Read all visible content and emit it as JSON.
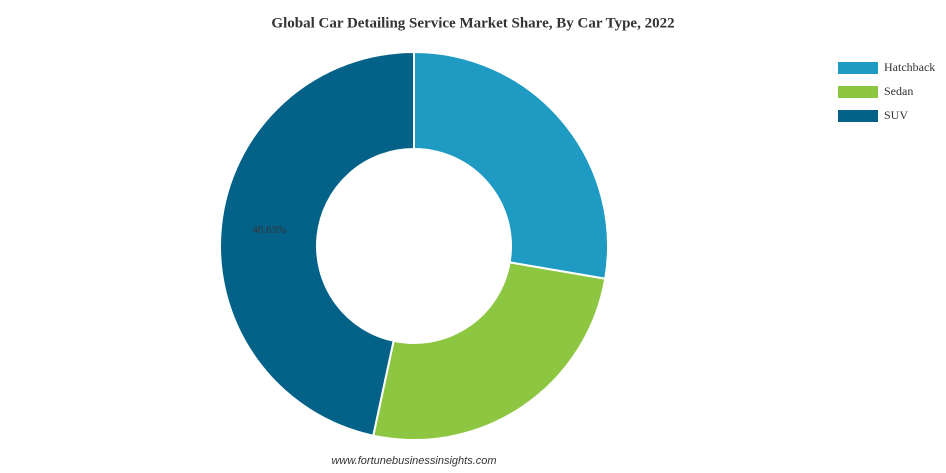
{
  "chart_data": {
    "type": "donut",
    "title": "Global Car Detailing Service Market Share, By Car Type, 2022",
    "categories": [
      "Hatchback",
      "Sedan",
      "SUV"
    ],
    "values": [
      27.7,
      25.67,
      46.63
    ],
    "value_labels": [
      null,
      null,
      "46.63%"
    ],
    "colors": [
      "#1e9ac3",
      "#8dc641",
      "#046289"
    ],
    "legend": "top-right",
    "source": "www.fortunebusinessinsights.com"
  }
}
